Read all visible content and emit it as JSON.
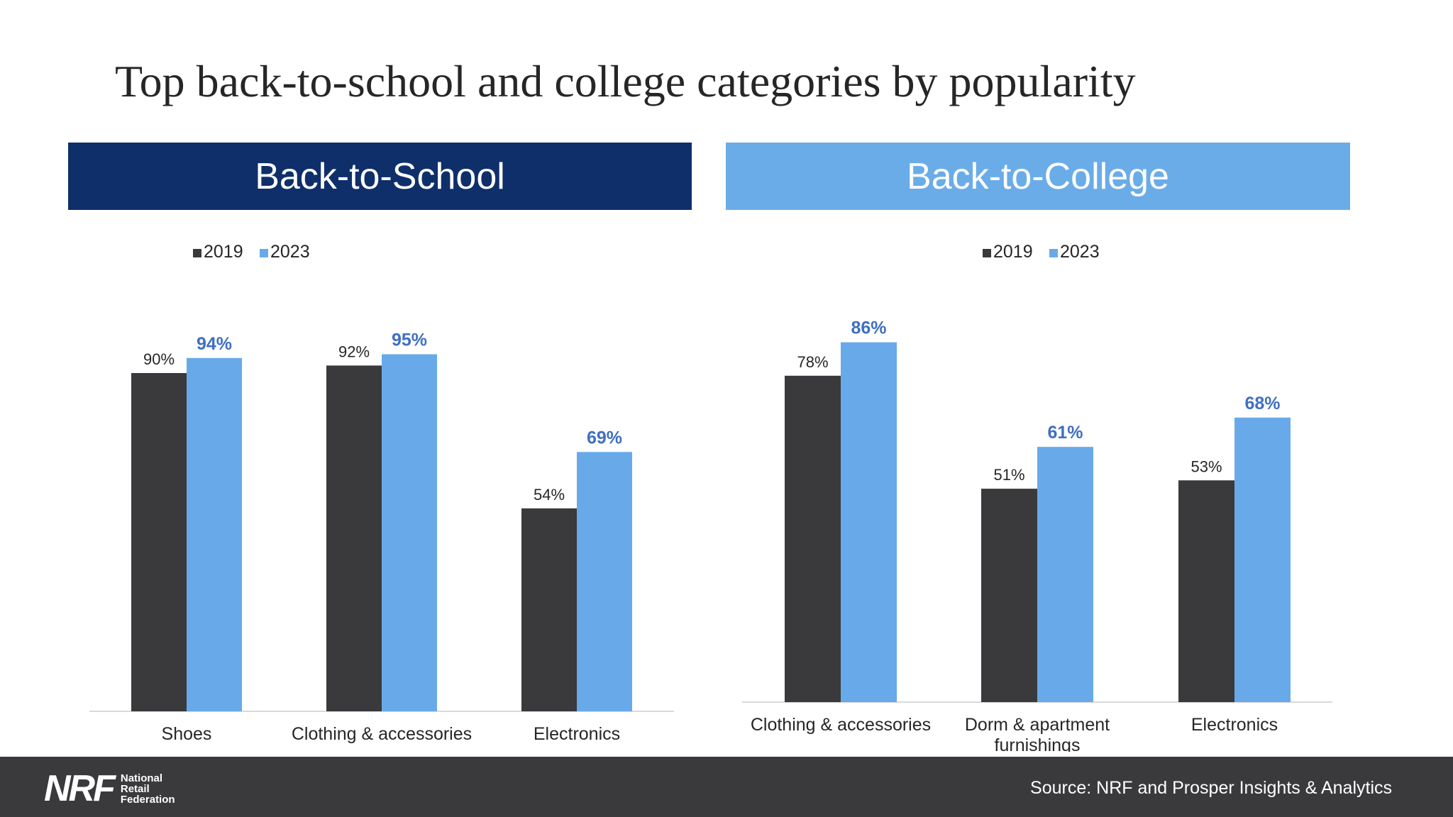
{
  "title": "Top back-to-school and college categories by popularity",
  "panels": {
    "school": {
      "header": "Back-to-School"
    },
    "college": {
      "header": "Back-to-College"
    }
  },
  "colors": {
    "series_2019": "#3a393c",
    "series_2023": "#68aae9",
    "label_2023": "#3f6fc1",
    "label_2019": "#262626",
    "school_header": "#0f2f6b",
    "college_header": "#6aace8",
    "footer": "#3a3a3c"
  },
  "chart_data": [
    {
      "type": "bar",
      "title": "",
      "categories": [
        [
          "Shoes"
        ],
        [
          "Clothing & accessories"
        ],
        [
          "Electronics"
        ]
      ],
      "series": [
        {
          "name": "2019",
          "values": [
            90,
            92,
            54
          ],
          "labels": [
            "90%",
            "92%",
            "54%"
          ]
        },
        {
          "name": "2023",
          "values": [
            94,
            95,
            69
          ],
          "labels": [
            "94%",
            "95%",
            "69%"
          ]
        }
      ],
      "ylim": [
        0,
        100
      ],
      "legend": "top",
      "grid": false
    },
    {
      "type": "bar",
      "title": "",
      "categories": [
        [
          "Clothing & accessories"
        ],
        [
          "Dorm & apartment",
          "furnishings"
        ],
        [
          "Electronics"
        ]
      ],
      "series": [
        {
          "name": "2019",
          "values": [
            78,
            51,
            53
          ],
          "labels": [
            "78%",
            "51%",
            "53%"
          ]
        },
        {
          "name": "2023",
          "values": [
            86,
            61,
            68
          ],
          "labels": [
            "86%",
            "61%",
            "68%"
          ]
        }
      ],
      "ylim": [
        0,
        100
      ],
      "legend": "top",
      "grid": false
    }
  ],
  "footer": {
    "logo": {
      "mark": "NRF",
      "lines": [
        "National",
        "Retail",
        "Federation"
      ]
    },
    "source": "Source: NRF and Prosper Insights & Analytics"
  }
}
